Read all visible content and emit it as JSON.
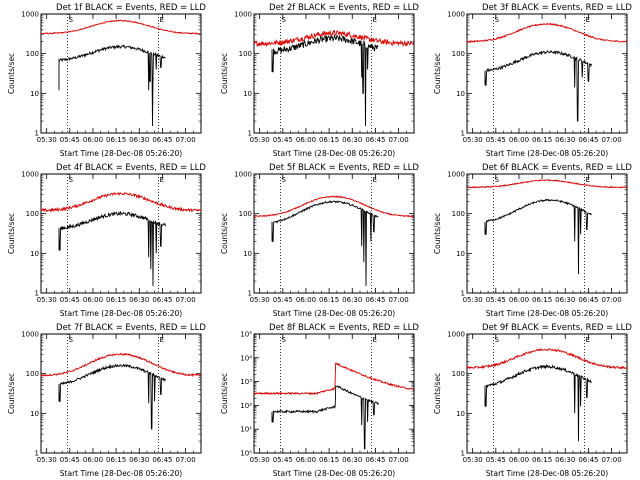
{
  "colors": {
    "events": "#000000",
    "lld": "#e00000",
    "background": "#ffffff"
  },
  "common": {
    "xlabel": "Start Time (28-Dec-08 05:26:20)",
    "ylabel": "Counts/sec",
    "xticks": [
      "05:30",
      "05:45",
      "06:00",
      "06:15",
      "06:30",
      "06:45",
      "07:00"
    ],
    "start_marker": "S",
    "end_marker": "E"
  },
  "chart_data": [
    {
      "type": "line",
      "title": "Det 1f BLACK = Events, RED = LLD",
      "yscale": "log",
      "ylim": [
        1,
        1000
      ],
      "ytick_labels": [
        "1",
        "10",
        "100",
        "1000"
      ],
      "xlim": [
        "05:26:20",
        "07:10"
      ],
      "marker_start": "05:43:30",
      "marker_end": "06:42:30",
      "series": [
        {
          "name": "Events",
          "color": "#000000",
          "data_start": "05:38",
          "data_end": "06:47",
          "base": 65,
          "peak": 150,
          "peak_time": "06:18",
          "noise": 0.08,
          "dropouts": [
            [
              "06:36",
              12
            ],
            [
              "06:37",
              20
            ],
            [
              "06:38:30",
              1.5
            ],
            [
              "06:39",
              25
            ],
            [
              "06:41",
              40
            ],
            [
              "06:44",
              45
            ]
          ]
        },
        {
          "name": "LLD",
          "color": "#e00000",
          "data_start": "05:26:20",
          "data_end": "07:10",
          "base": 320,
          "peak": 680,
          "peak_time": "06:18",
          "noise": 0.03,
          "dropouts": []
        }
      ]
    },
    {
      "type": "line",
      "title": "Det 2f BLACK = Events, RED = LLD",
      "yscale": "log",
      "ylim": [
        1,
        1000
      ],
      "ytick_labels": [
        "1",
        "10",
        "100",
        "1000"
      ],
      "xlim": [
        "05:26:20",
        "07:10"
      ],
      "marker_start": "05:43:30",
      "marker_end": "06:42:30",
      "series": [
        {
          "name": "Events",
          "color": "#000000",
          "data_start": "05:38",
          "data_end": "06:47",
          "base": 110,
          "peak": 240,
          "peak_time": "06:18",
          "noise": 0.2,
          "dropouts": [
            [
              "05:38:30",
              35
            ],
            [
              "06:36",
              25
            ],
            [
              "06:37",
              10
            ],
            [
              "06:38:30",
              1.5
            ],
            [
              "06:40",
              40
            ]
          ]
        },
        {
          "name": "LLD",
          "color": "#e00000",
          "data_start": "05:26:20",
          "data_end": "07:10",
          "base": 180,
          "peak": 330,
          "peak_time": "06:18",
          "noise": 0.15,
          "dropouts": []
        }
      ]
    },
    {
      "type": "line",
      "title": "Det 3f BLACK = Events, RED = LLD",
      "yscale": "log",
      "ylim": [
        1,
        1000
      ],
      "ytick_labels": [
        "1",
        "10",
        "100",
        "1000"
      ],
      "xlim": [
        "05:26:20",
        "07:10"
      ],
      "marker_start": "05:43:30",
      "marker_end": "06:42:30",
      "series": [
        {
          "name": "Events",
          "color": "#000000",
          "data_start": "05:38",
          "data_end": "06:47",
          "base": 35,
          "peak": 110,
          "peak_time": "06:20",
          "noise": 0.08,
          "dropouts": [
            [
              "05:38:30",
              16
            ],
            [
              "06:36",
              14
            ],
            [
              "06:38",
              2
            ],
            [
              "06:41",
              25
            ],
            [
              "06:45",
              20
            ]
          ]
        },
        {
          "name": "LLD",
          "color": "#e00000",
          "data_start": "05:26:20",
          "data_end": "07:10",
          "base": 200,
          "peak": 560,
          "peak_time": "06:18",
          "noise": 0.04,
          "dropouts": []
        }
      ]
    },
    {
      "type": "line",
      "title": "Det 4f BLACK = Events, RED = LLD",
      "yscale": "log",
      "ylim": [
        1,
        1000
      ],
      "ytick_labels": [
        "1",
        "10",
        "100",
        "1000"
      ],
      "xlim": [
        "05:26:20",
        "07:10"
      ],
      "marker_start": "05:43:30",
      "marker_end": "06:42:30",
      "series": [
        {
          "name": "Events",
          "color": "#000000",
          "data_start": "05:38",
          "data_end": "06:47",
          "base": 40,
          "peak": 100,
          "peak_time": "06:18",
          "noise": 0.1,
          "dropouts": [
            [
              "05:38:30",
              12
            ],
            [
              "06:36",
              8
            ],
            [
              "06:37:30",
              4
            ],
            [
              "06:39",
              1.5
            ],
            [
              "06:41",
              10
            ],
            [
              "06:44",
              15
            ]
          ]
        },
        {
          "name": "LLD",
          "color": "#e00000",
          "data_start": "05:26:20",
          "data_end": "07:10",
          "base": 120,
          "peak": 320,
          "peak_time": "06:18",
          "noise": 0.08,
          "dropouts": []
        }
      ]
    },
    {
      "type": "line",
      "title": "Det 5f BLACK = Events, RED = LLD",
      "yscale": "log",
      "ylim": [
        1,
        1000
      ],
      "ytick_labels": [
        "1",
        "10",
        "100",
        "1000"
      ],
      "xlim": [
        "05:26:20",
        "07:10"
      ],
      "marker_start": "05:43:30",
      "marker_end": "06:42:30",
      "series": [
        {
          "name": "Events",
          "color": "#000000",
          "data_start": "05:38",
          "data_end": "06:47",
          "base": 55,
          "peak": 200,
          "peak_time": "06:18",
          "noise": 0.05,
          "dropouts": [
            [
              "05:38:30",
              20
            ],
            [
              "06:36",
              15
            ],
            [
              "06:37:30",
              6
            ],
            [
              "06:39",
              1.5
            ],
            [
              "06:42",
              20
            ],
            [
              "06:44",
              35
            ]
          ]
        },
        {
          "name": "LLD",
          "color": "#e00000",
          "data_start": "05:26:20",
          "data_end": "07:10",
          "base": 85,
          "peak": 270,
          "peak_time": "06:18",
          "noise": 0.03,
          "dropouts": []
        }
      ]
    },
    {
      "type": "line",
      "title": "Det 6f BLACK = Events, RED = LLD",
      "yscale": "log",
      "ylim": [
        1,
        1000
      ],
      "ytick_labels": [
        "1",
        "10",
        "100",
        "1000"
      ],
      "xlim": [
        "05:26:20",
        "07:10"
      ],
      "marker_start": "05:43:30",
      "marker_end": "06:42:30",
      "series": [
        {
          "name": "Events",
          "color": "#000000",
          "data_start": "05:38",
          "data_end": "06:47",
          "base": 60,
          "peak": 220,
          "peak_time": "06:20",
          "noise": 0.05,
          "dropouts": [
            [
              "05:38:30",
              30
            ],
            [
              "06:36",
              20
            ],
            [
              "06:38:30",
              3
            ],
            [
              "06:40",
              30
            ],
            [
              "06:44",
              40
            ]
          ]
        },
        {
          "name": "LLD",
          "color": "#e00000",
          "data_start": "05:26:20",
          "data_end": "07:10",
          "base": 460,
          "peak": 700,
          "peak_time": "06:18",
          "noise": 0.03,
          "dropouts": []
        }
      ]
    },
    {
      "type": "line",
      "title": "Det 7f BLACK = Events, RED = LLD",
      "yscale": "log",
      "ylim": [
        1,
        1000
      ],
      "ytick_labels": [
        "1",
        "10",
        "100",
        "1000"
      ],
      "xlim": [
        "05:26:20",
        "07:10"
      ],
      "marker_start": "05:43:30",
      "marker_end": "06:42:30",
      "series": [
        {
          "name": "Events",
          "color": "#000000",
          "data_start": "05:38",
          "data_end": "06:47",
          "base": 50,
          "peak": 160,
          "peak_time": "06:18",
          "noise": 0.07,
          "dropouts": [
            [
              "05:38:30",
              20
            ],
            [
              "06:36",
              18
            ],
            [
              "06:38",
              4
            ],
            [
              "06:40",
              20
            ],
            [
              "06:44",
              30
            ]
          ]
        },
        {
          "name": "LLD",
          "color": "#e00000",
          "data_start": "05:26:20",
          "data_end": "07:10",
          "base": 90,
          "peak": 310,
          "peak_time": "06:18",
          "noise": 0.05,
          "dropouts": []
        }
      ]
    },
    {
      "type": "line",
      "title": "Det 8f BLACK = Events, RED = LLD",
      "yscale": "log",
      "ylim": [
        1,
        100000
      ],
      "ytick_labels": [
        "10⁰",
        "10¹",
        "10²",
        "10³",
        "10⁴",
        "10⁵"
      ],
      "xlim": [
        "05:26:20",
        "07:10"
      ],
      "marker_start": "05:43:30",
      "marker_end": "06:42:30",
      "series": [
        {
          "name": "Events",
          "color": "#000000",
          "data_start": "05:38",
          "data_end": "06:47",
          "base": 55,
          "peak": 55,
          "peak_time": "06:18",
          "noise": 0.1,
          "spike": {
            "time": "06:19",
            "peak": 700,
            "decay_min": 12
          },
          "dropouts": [
            [
              "05:38:30",
              20
            ],
            [
              "06:36",
              15
            ],
            [
              "06:38",
              1.5
            ],
            [
              "06:40",
              20
            ],
            [
              "06:44",
              40
            ]
          ]
        },
        {
          "name": "LLD",
          "color": "#e00000",
          "data_start": "05:26:20",
          "data_end": "07:10",
          "base": 320,
          "peak": 320,
          "peak_time": "06:18",
          "noise": 0.08,
          "spike": {
            "time": "06:19",
            "peak": 6000,
            "decay_min": 14
          },
          "dropouts": []
        }
      ]
    },
    {
      "type": "line",
      "title": "Det 9f BLACK = Events, RED = LLD",
      "yscale": "log",
      "ylim": [
        1,
        1000
      ],
      "ytick_labels": [
        "1",
        "10",
        "100",
        "1000"
      ],
      "xlim": [
        "05:26:20",
        "07:10"
      ],
      "marker_start": "05:43:30",
      "marker_end": "06:42:30",
      "series": [
        {
          "name": "Events",
          "color": "#000000",
          "data_start": "05:38",
          "data_end": "06:47",
          "base": 45,
          "peak": 150,
          "peak_time": "06:18",
          "noise": 0.08,
          "dropouts": [
            [
              "05:38:30",
              15
            ],
            [
              "06:36",
              10
            ],
            [
              "06:38:30",
              2
            ],
            [
              "06:40",
              15
            ],
            [
              "06:44",
              25
            ]
          ]
        },
        {
          "name": "LLD",
          "color": "#e00000",
          "data_start": "05:26:20",
          "data_end": "07:10",
          "base": 140,
          "peak": 410,
          "peak_time": "06:18",
          "noise": 0.06,
          "dropouts": []
        }
      ]
    }
  ]
}
